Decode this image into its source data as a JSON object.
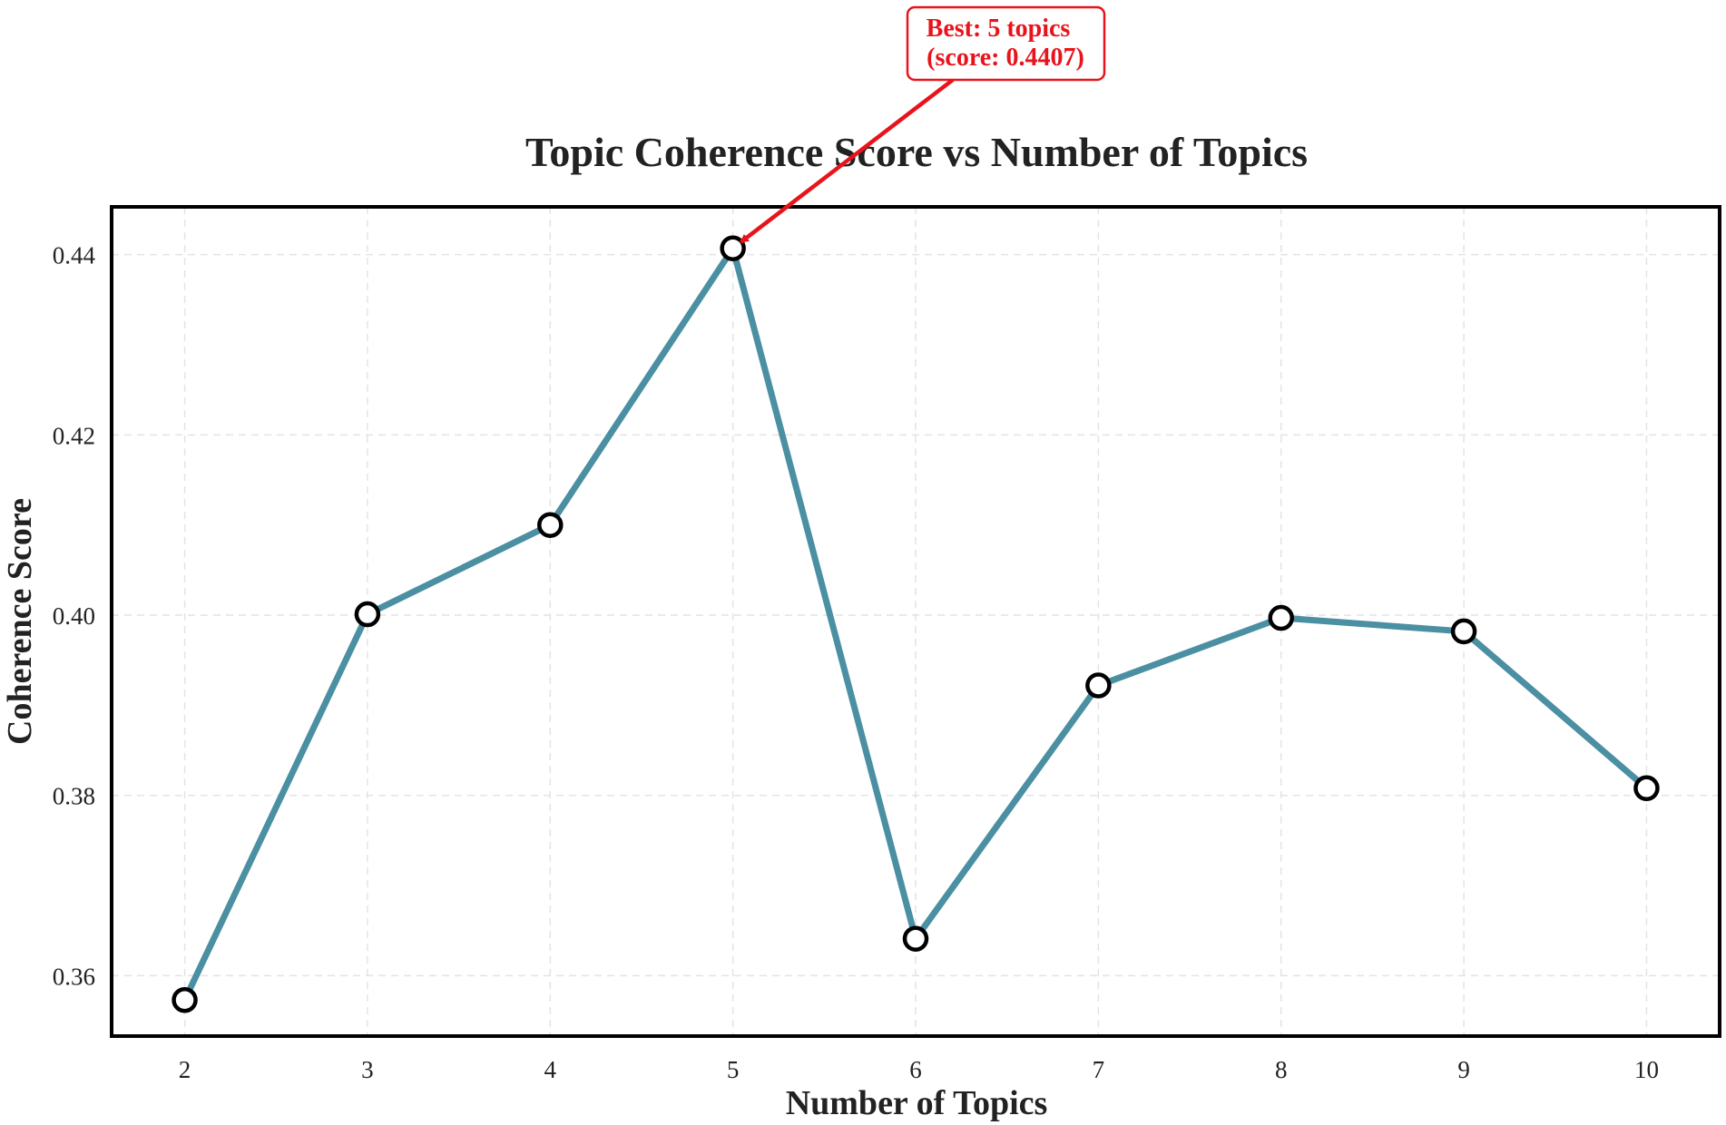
{
  "chart_data": {
    "type": "line",
    "title": "Topic Coherence Score vs Number of Topics",
    "xlabel": "Number of Topics",
    "ylabel": "Coherence Score",
    "x": [
      2,
      3,
      4,
      5,
      6,
      7,
      8,
      9,
      10
    ],
    "series": [
      {
        "values": [
          0.3573,
          0.4001,
          0.41,
          0.4407,
          0.3641,
          0.3922,
          0.3997,
          0.3982,
          0.3808
        ],
        "color": "#4a8fa2"
      }
    ],
    "xticks": [
      "2",
      "3",
      "4",
      "5",
      "6",
      "7",
      "8",
      "9",
      "10"
    ],
    "yticks": [
      "0.36",
      "0.38",
      "0.40",
      "0.42",
      "0.44"
    ],
    "ytick_values": [
      0.36,
      0.38,
      0.4,
      0.42,
      0.44
    ],
    "xlim": [
      1.6,
      10.4
    ],
    "ylim": [
      0.3533,
      0.4453
    ],
    "grid": true,
    "annotation": {
      "line1": "Best: 5 topics",
      "line2": "(score: 0.4407)",
      "target_x": 5,
      "target_y": 0.4407,
      "color": "#e8131b"
    }
  }
}
